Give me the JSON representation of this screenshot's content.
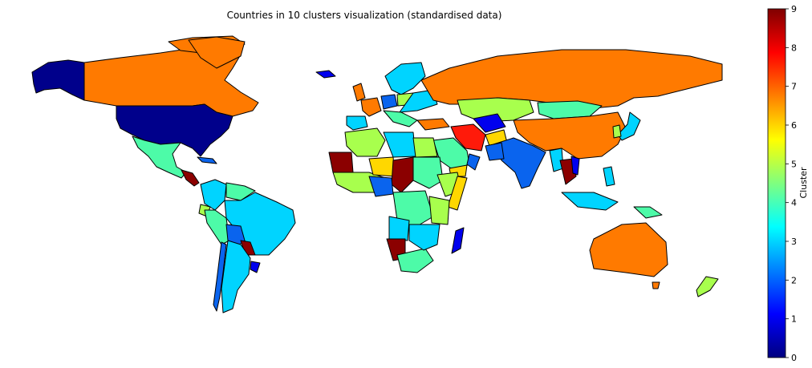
{
  "title": "Countries in 10 clusters visualization (standardised data)",
  "colorbar": {
    "label": "Cluster",
    "min": 0,
    "max": 9,
    "ticks": [
      "0",
      "1",
      "2",
      "3",
      "4",
      "5",
      "6",
      "7",
      "8",
      "9"
    ],
    "colormap": "jet",
    "stops": [
      "#00007f",
      "#0000ff",
      "#007fff",
      "#00ffff",
      "#7fff7f",
      "#ffff00",
      "#ff7f00",
      "#ff0000",
      "#7f0000"
    ]
  },
  "cluster_colors": {
    "0": "#00008b",
    "1": "#0000ee",
    "2": "#0a64ee",
    "3": "#00d4ff",
    "4": "#4dfba8",
    "5": "#a8ff4d",
    "6": "#ffd700",
    "7": "#ff7a00",
    "8": "#ff1a0a",
    "9": "#8b0000"
  },
  "legend_orientation": "vertical-right"
}
